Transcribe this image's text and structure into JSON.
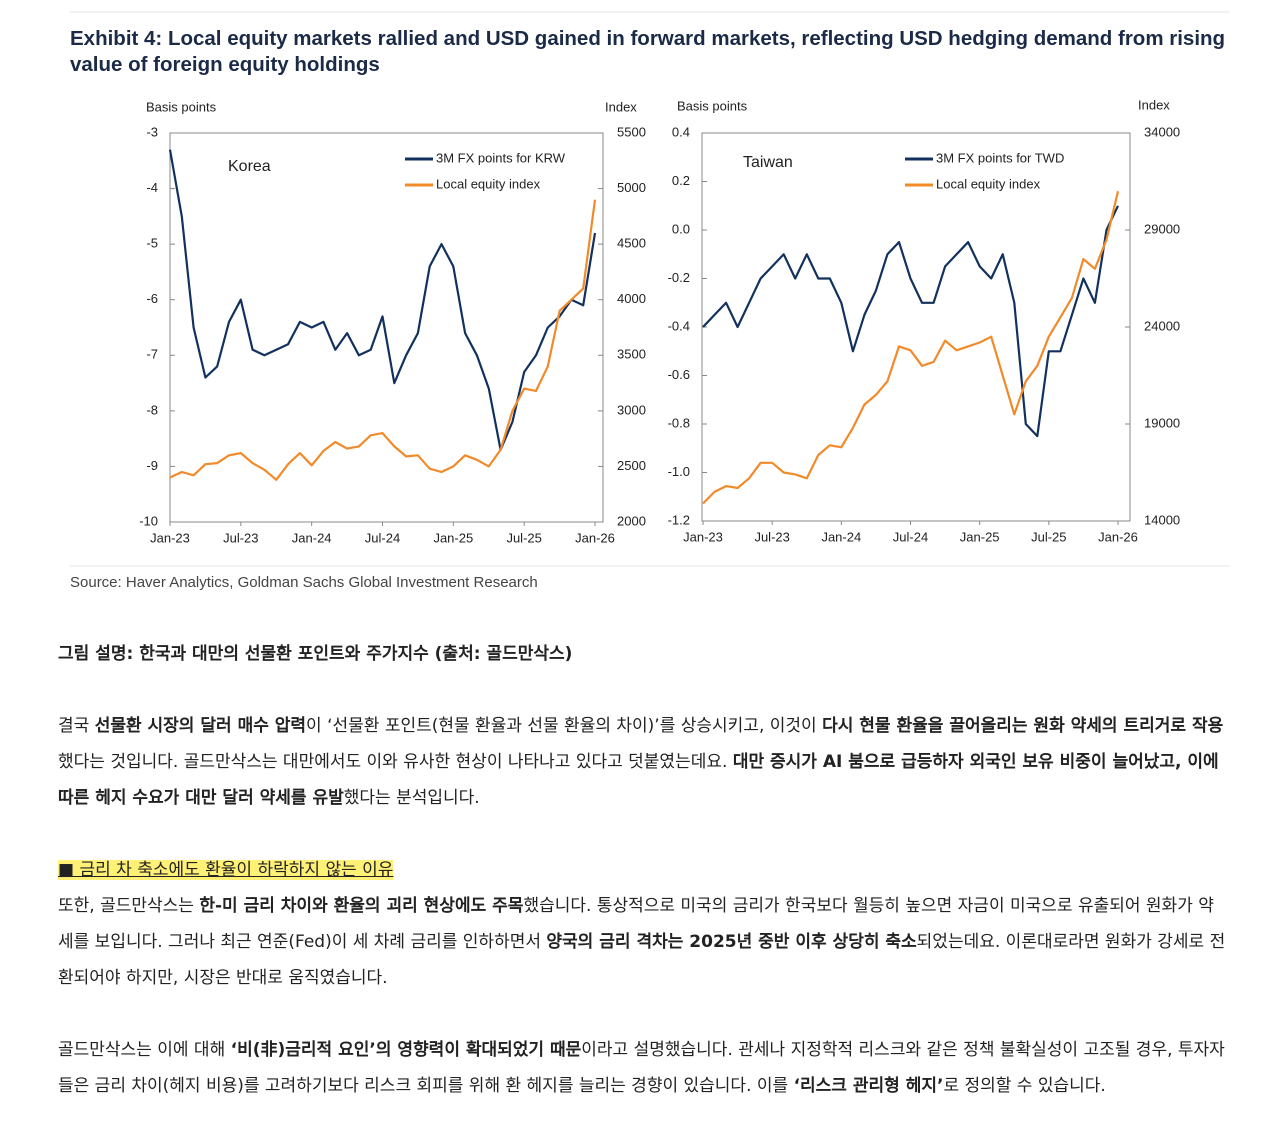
{
  "exhibit": {
    "title": "Exhibit 4: Local equity markets rallied and USD gained in forward markets, reflecting USD hedging demand from rising value of foreign equity holdings",
    "source": "Source: Haver Analytics, Goldman Sachs Global Investment Research"
  },
  "chart_data": [
    {
      "type": "line",
      "panel_label": "Korea",
      "y_label": "Basis points",
      "y2_label": "Index",
      "legend": "upper right",
      "categories": [
        "Jan-23",
        null,
        null,
        null,
        null,
        null,
        "Jul-23",
        null,
        null,
        null,
        null,
        null,
        "Jan-24",
        null,
        null,
        null,
        null,
        null,
        "Jul-24",
        null,
        null,
        null,
        null,
        null,
        "Jan-25",
        null,
        null,
        null,
        null,
        null,
        "Jul-25",
        null,
        null,
        null,
        null,
        null,
        "Jan-26"
      ],
      "ylim": [
        -10,
        -3
      ],
      "yticks": [
        -10,
        -9,
        -8,
        -7,
        -6,
        -5,
        -4,
        -3
      ],
      "y2lim": [
        2000,
        5500
      ],
      "y2ticks": [
        2000,
        2500,
        3000,
        3500,
        4000,
        4500,
        5000,
        5500
      ],
      "series": [
        {
          "name": "3M FX points for KRW",
          "color": "#12315f",
          "values": [
            -3.3,
            -4.5,
            -6.5,
            -7.4,
            -7.2,
            -6.4,
            -6.0,
            -6.9,
            -7.0,
            -6.9,
            -6.8,
            -6.4,
            -6.5,
            -6.4,
            -6.9,
            -6.6,
            -7.0,
            -6.9,
            -6.3,
            -7.5,
            -7.0,
            -6.6,
            -5.4,
            -5.0,
            -5.4,
            -6.6,
            -7.0,
            -7.6,
            -8.7,
            -8.2,
            -7.3,
            -7.0,
            -6.5,
            -6.3,
            -6.0,
            -6.1,
            -4.8
          ]
        },
        {
          "name": "Local equity index",
          "color": "#f28a2a",
          "axis": "y2",
          "values": [
            2400,
            2450,
            2420,
            2520,
            2530,
            2600,
            2620,
            2530,
            2470,
            2380,
            2520,
            2620,
            2510,
            2640,
            2720,
            2660,
            2680,
            2780,
            2800,
            2680,
            2590,
            2600,
            2480,
            2450,
            2500,
            2600,
            2560,
            2500,
            2650,
            3000,
            3200,
            3180,
            3400,
            3900,
            4000,
            4100,
            4900
          ]
        }
      ]
    },
    {
      "type": "line",
      "panel_label": "Taiwan",
      "y_label": "Basis points",
      "y2_label": "Index",
      "legend": "upper right",
      "categories": [
        "Jan-23",
        null,
        null,
        null,
        null,
        null,
        "Jul-23",
        null,
        null,
        null,
        null,
        null,
        "Jan-24",
        null,
        null,
        null,
        null,
        null,
        "Jul-24",
        null,
        null,
        null,
        null,
        null,
        "Jan-25",
        null,
        null,
        null,
        null,
        null,
        "Jul-25",
        null,
        null,
        null,
        null,
        null,
        "Jan-26"
      ],
      "ylim": [
        -1.2,
        0.4
      ],
      "yticks": [
        -1.2,
        {
          "value": -1,
          "label": "-1.0"
        },
        -0.8,
        -0.6,
        -0.4,
        -0.2,
        {
          "value": 0,
          "label": "0.0"
        },
        0.2,
        0.4
      ],
      "y2lim": [
        14000,
        34000
      ],
      "y2ticks": [
        14000,
        19000,
        24000,
        29000,
        34000
      ],
      "series": [
        {
          "name": "3M FX points for TWD",
          "color": "#12315f",
          "values": [
            -0.4,
            -0.35,
            -0.3,
            -0.4,
            -0.3,
            -0.2,
            -0.15,
            -0.1,
            -0.2,
            -0.1,
            -0.2,
            -0.2,
            -0.3,
            -0.5,
            -0.35,
            -0.25,
            -0.1,
            -0.05,
            -0.2,
            -0.3,
            -0.3,
            -0.15,
            -0.1,
            -0.05,
            -0.15,
            -0.2,
            -0.1,
            -0.3,
            -0.8,
            -0.85,
            -0.5,
            -0.5,
            -0.35,
            -0.2,
            -0.3,
            0.0,
            0.1
          ]
        },
        {
          "name": "Local equity index",
          "color": "#f28a2a",
          "axis": "y2",
          "values": [
            14900,
            15500,
            15800,
            15700,
            16200,
            17000,
            17000,
            16500,
            16400,
            16200,
            17400,
            17900,
            17800,
            18800,
            20000,
            20500,
            21200,
            23000,
            22800,
            22000,
            22200,
            23300,
            22800,
            23000,
            23200,
            23500,
            21500,
            19500,
            21200,
            22000,
            23500,
            24500,
            25500,
            27500,
            27000,
            28500,
            31000
          ]
        }
      ]
    }
  ],
  "article": {
    "caption": [
      {
        "text": "그림 설명: 한국과 대만의 선물환 포인트와 주가지수 (출처: 골드만삭스)",
        "bold": true
      }
    ],
    "paragraphs": [
      [
        {
          "text": "결국 ",
          "bold": false
        },
        {
          "text": "선물환 시장의 달러 매수 압력",
          "bold": true
        },
        {
          "text": "이 ‘선물환 포인트(현물 환율과 선물 환율의 차이)’를 상승시키고, 이것이 ",
          "bold": false
        },
        {
          "text": "다시 현물 환율을 끌어올리는 원화 약세의 트리거로 작용",
          "bold": true
        },
        {
          "text": "했다는 것입니다. 골드만삭스는 대만에서도 이와 유사한 현상이 나타나고 있다고 덧붙였는데요. ",
          "bold": false
        },
        {
          "text": "대만 증시가 AI 붐으로 급등하자 외국인 보유 비중이 늘어났고, 이에 따른 헤지 수요가 대만 달러 약세를 유발",
          "bold": true
        },
        {
          "text": "했다는 분석입니다.",
          "bold": false
        }
      ]
    ],
    "heading": "■ 금리 차 축소에도 환율이 하락하지 않는 이유",
    "paragraphs_after": [
      [
        {
          "text": "또한, 골드만삭스는 ",
          "bold": false
        },
        {
          "text": "한-미 금리 차이와 환율의 괴리 현상에도 주목",
          "bold": true
        },
        {
          "text": "했습니다. 통상적으로 미국의 금리가 한국보다 월등히 높으면 자금이 미국으로 유출되어 원화가 약세를 보입니다. 그러나 최근 연준(Fed)이 세 차례 금리를 인하하면서 ",
          "bold": false
        },
        {
          "text": "양국의 금리 격차는 2025년 중반 이후 상당히 축소",
          "bold": true
        },
        {
          "text": "되었는데요. 이론대로라면 원화가 강세로 전환되어야 하지만, 시장은 반대로 움직였습니다.",
          "bold": false
        }
      ],
      [
        {
          "text": "골드만삭스는 이에 대해 ",
          "bold": false
        },
        {
          "text": "‘비(非)금리적 요인’의 영향력이 확대되었기 때문",
          "bold": true
        },
        {
          "text": "이라고 설명했습니다. 관세나 지정학적 리스크와 같은 정책 불확실성이 고조될 경우, 투자자들은 금리 차이(헤지 비용)를 고려하기보다 리스크 회피를 위해 환 헤지를 늘리는 경향이 있습니다. 이를 ",
          "bold": false
        },
        {
          "text": "‘리스크 관리형 헤지’",
          "bold": true
        },
        {
          "text": "로 정의할 수 있습니다.",
          "bold": false
        }
      ]
    ]
  }
}
